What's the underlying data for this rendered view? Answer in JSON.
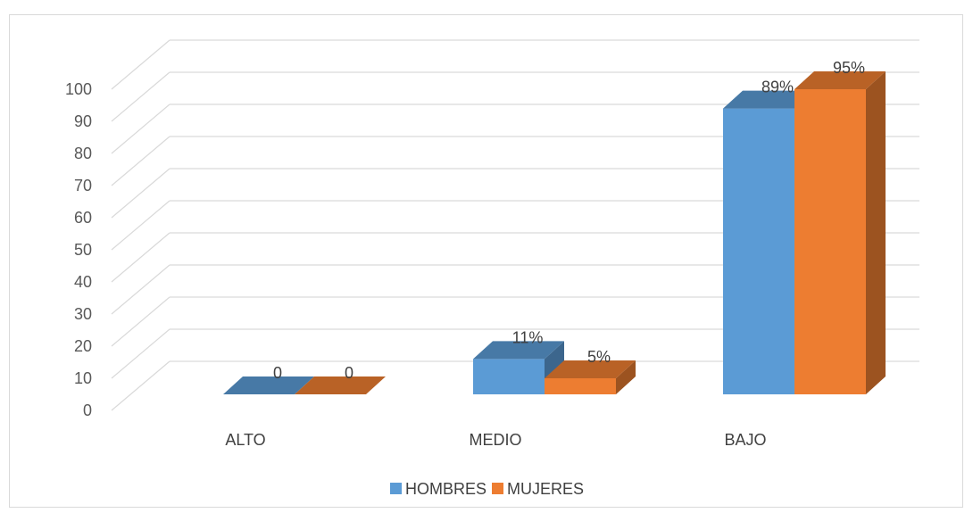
{
  "chart_data": {
    "type": "bar",
    "title": "",
    "xlabel": "",
    "ylabel": "",
    "categories": [
      "ALTO",
      "MEDIO",
      "BAJO"
    ],
    "series": [
      {
        "name": "HOMBRES",
        "values": [
          0,
          11,
          89
        ],
        "labels": [
          "0",
          "11%",
          "89%"
        ],
        "color": "#5b9bd5"
      },
      {
        "name": "MUJERES",
        "values": [
          0,
          5,
          95
        ],
        "labels": [
          "0",
          "5%",
          "95%"
        ],
        "color": "#ed7d31"
      }
    ],
    "ylim": [
      0,
      100
    ],
    "yticks": [
      0,
      10,
      20,
      30,
      40,
      50,
      60,
      70,
      80,
      90,
      100
    ],
    "grid": true,
    "legend_position": "bottom",
    "style": "3d-column"
  }
}
